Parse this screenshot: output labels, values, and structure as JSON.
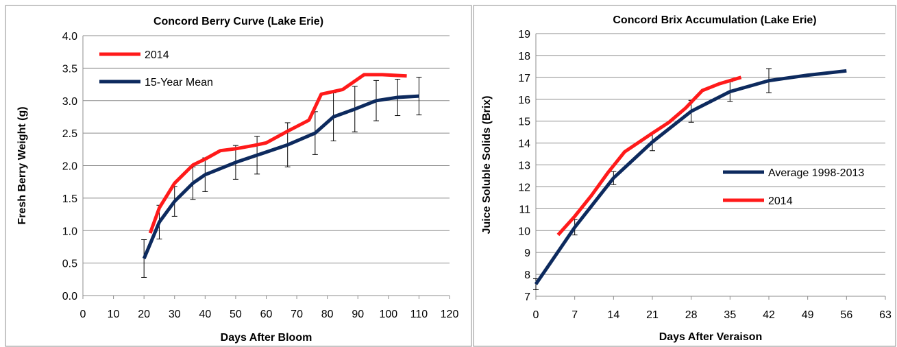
{
  "chart_data": [
    {
      "type": "line",
      "title": "Concord  Berry Curve (Lake Erie)",
      "xlabel": "Days After Bloom",
      "ylabel": "Fresh Berry Weight (g)",
      "xlim": [
        0,
        120
      ],
      "ylim": [
        0,
        4.0
      ],
      "xticks": [
        "0",
        "10",
        "20",
        "30",
        "40",
        "50",
        "60",
        "70",
        "80",
        "90",
        "100",
        "110",
        "120"
      ],
      "yticks": [
        "0.0",
        "0.5",
        "1.0",
        "1.5",
        "2.0",
        "2.5",
        "3.0",
        "3.5",
        "4.0"
      ],
      "grid": "horizontal",
      "legend_position": "top-left",
      "series": [
        {
          "name": "2014",
          "color": "#ff1a1a",
          "x": [
            22,
            25,
            30,
            36,
            40,
            45,
            50,
            56,
            60,
            67,
            74,
            78,
            85,
            92,
            98,
            106
          ],
          "y": [
            0.96,
            1.35,
            1.73,
            2.01,
            2.1,
            2.23,
            2.26,
            2.31,
            2.35,
            2.53,
            2.7,
            3.1,
            3.17,
            3.4,
            3.4,
            3.38
          ]
        },
        {
          "name": "15-Year Mean",
          "color": "#0d2a5e",
          "x": [
            20,
            25,
            30,
            36,
            40,
            50,
            57,
            67,
            76,
            82,
            89,
            96,
            103,
            110
          ],
          "y": [
            0.57,
            1.13,
            1.45,
            1.73,
            1.86,
            2.05,
            2.16,
            2.32,
            2.5,
            2.75,
            2.87,
            3.0,
            3.05,
            3.07
          ],
          "error": [
            0.29,
            0.26,
            0.23,
            0.25,
            0.26,
            0.26,
            0.29,
            0.34,
            0.33,
            0.37,
            0.35,
            0.31,
            0.28,
            0.29
          ]
        }
      ]
    },
    {
      "type": "line",
      "title": "Concord Brix Accumulation (Lake Erie)",
      "xlabel": "Days After Veraison",
      "ylabel": "Juice Soluble Solids (Brix)",
      "xlim": [
        0,
        63
      ],
      "ylim": [
        7,
        19
      ],
      "xticks": [
        "0",
        "7",
        "14",
        "21",
        "28",
        "35",
        "42",
        "49",
        "56",
        "63"
      ],
      "yticks": [
        "7",
        "8",
        "9",
        "10",
        "11",
        "12",
        "13",
        "14",
        "15",
        "16",
        "17",
        "18",
        "19"
      ],
      "grid": "horizontal",
      "legend_position": "center-right",
      "series": [
        {
          "name": "Average 1998-2013",
          "color": "#0d2a5e",
          "x": [
            0,
            7,
            14,
            21,
            28,
            35,
            42,
            49,
            56
          ],
          "y": [
            7.55,
            10.15,
            12.4,
            14.05,
            15.45,
            16.35,
            16.85,
            17.1,
            17.3
          ],
          "error": [
            0.25,
            0.35,
            0.3,
            0.4,
            0.5,
            0.45,
            0.55,
            0,
            0
          ]
        },
        {
          "name": "2014",
          "color": "#ff1a1a",
          "x": [
            4,
            7,
            10,
            13,
            16,
            21,
            24,
            27,
            30,
            33,
            37
          ],
          "y": [
            9.8,
            10.65,
            11.6,
            12.65,
            13.6,
            14.45,
            14.95,
            15.6,
            16.4,
            16.7,
            17.0
          ]
        }
      ]
    }
  ]
}
